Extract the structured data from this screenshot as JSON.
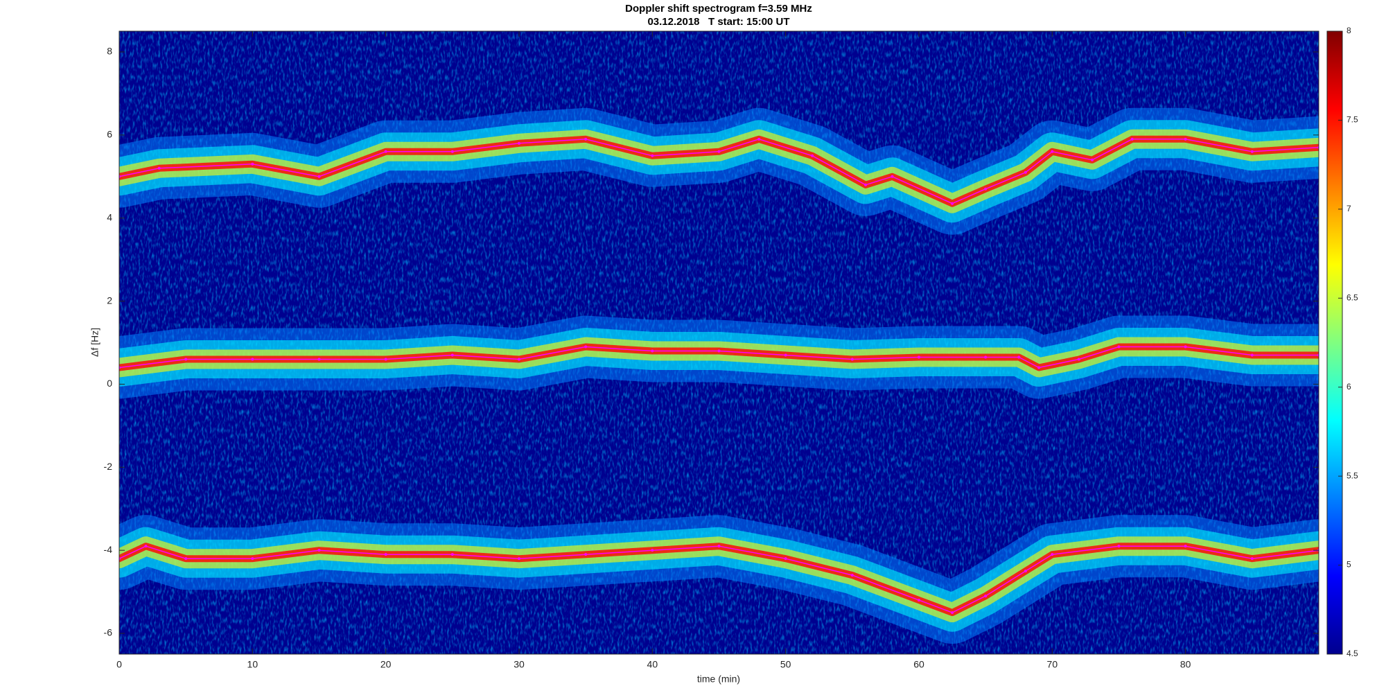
{
  "chart_data": {
    "type": "spectrogram",
    "title": "Doppler shift spectrogram f=3.59 MHz",
    "subtitle": "03.12.2018   T start: 15:00 UT",
    "x_label": "time (min)",
    "y_label": "Δf [Hz]",
    "xlim": [
      0,
      90
    ],
    "xticks": [
      0,
      10,
      20,
      30,
      40,
      50,
      60,
      70,
      80
    ],
    "ylim": [
      -6.5,
      8.5
    ],
    "yticks": [
      -6,
      -4,
      -2,
      0,
      2,
      4,
      6,
      8
    ],
    "clim": [
      4.5,
      8
    ],
    "cticks": [
      4.5,
      5,
      5.5,
      6,
      6.5,
      7,
      7.5,
      8
    ],
    "colormap": [
      "#00008f",
      "#0000ff",
      "#0080ff",
      "#00ffff",
      "#80ff80",
      "#ffff00",
      "#ff8000",
      "#ff0000",
      "#800000"
    ],
    "series": [
      {
        "color": "#ff00ff",
        "x": [
          0,
          3,
          10,
          15,
          20,
          25,
          30,
          35,
          40,
          45,
          48,
          52,
          56,
          58,
          62.5,
          65,
          68,
          70,
          73,
          76,
          80,
          85,
          90
        ],
        "values": [
          5.0,
          5.2,
          5.3,
          5.0,
          5.6,
          5.6,
          5.8,
          5.9,
          5.5,
          5.6,
          5.9,
          5.5,
          4.8,
          5.0,
          4.35,
          4.7,
          5.1,
          5.6,
          5.4,
          5.9,
          5.9,
          5.6,
          5.7
        ]
      },
      {
        "color": "#ff00ff",
        "x": [
          0,
          5,
          10,
          15,
          20,
          25,
          30,
          35,
          40,
          45,
          50,
          55,
          60,
          65,
          67.5,
          69,
          72,
          75,
          80,
          85,
          90
        ],
        "values": [
          0.4,
          0.6,
          0.6,
          0.6,
          0.6,
          0.7,
          0.6,
          0.9,
          0.8,
          0.8,
          0.7,
          0.6,
          0.65,
          0.65,
          0.65,
          0.4,
          0.6,
          0.9,
          0.9,
          0.7,
          0.7
        ]
      },
      {
        "color": "#ff00ff",
        "x": [
          0,
          2,
          5,
          10,
          15,
          20,
          25,
          30,
          35,
          40,
          45,
          50,
          55,
          60,
          62.5,
          65,
          68,
          70,
          75,
          80,
          85,
          90
        ],
        "values": [
          -4.2,
          -3.9,
          -4.2,
          -4.2,
          -4.0,
          -4.1,
          -4.1,
          -4.2,
          -4.1,
          -4.0,
          -3.9,
          -4.2,
          -4.6,
          -5.2,
          -5.5,
          -5.1,
          -4.5,
          -4.1,
          -3.9,
          -3.9,
          -4.2,
          -4.0
        ]
      }
    ]
  }
}
